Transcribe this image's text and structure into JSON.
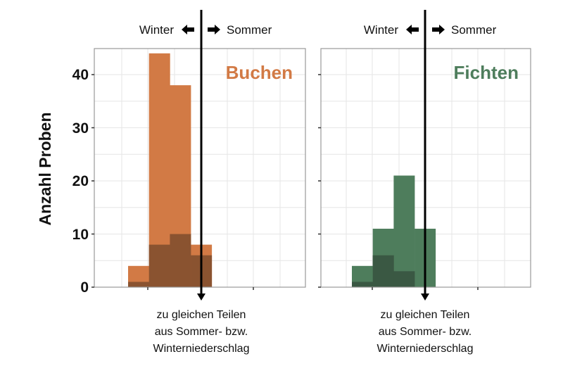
{
  "chart_data": [
    {
      "type": "bar",
      "title": "Buchen",
      "ylabel": "Anzahl Proben",
      "ylim": [
        0,
        45
      ],
      "yticks": [
        "0",
        "10",
        "20",
        "30",
        "40"
      ],
      "grid": true,
      "top_labels": {
        "left": "Winter",
        "right": "Sommer"
      },
      "bottom_label": [
        "zu gleichen Teilen",
        "aus Sommer- bzw.",
        "Winterniederschlag"
      ],
      "colors": {
        "light": "#D27A45",
        "dark": "#8A5330",
        "title": "#D27A45"
      },
      "series": [
        {
          "values": [
            4,
            44,
            38,
            8
          ]
        },
        {
          "values": [
            1,
            8,
            10,
            6
          ]
        }
      ]
    },
    {
      "type": "bar",
      "title": "Fichten",
      "ylim": [
        0,
        45
      ],
      "grid": true,
      "top_labels": {
        "left": "Winter",
        "right": "Sommer"
      },
      "bottom_label": [
        "zu gleichen Teilen",
        "aus Sommer- bzw.",
        "Winterniederschlag"
      ],
      "colors": {
        "light": "#4E7D5C",
        "dark": "#3A5843",
        "title": "#4E7D5C"
      },
      "series": [
        {
          "values": [
            4,
            11,
            21,
            11
          ]
        },
        {
          "values": [
            1,
            6,
            3,
            0
          ]
        }
      ]
    }
  ]
}
